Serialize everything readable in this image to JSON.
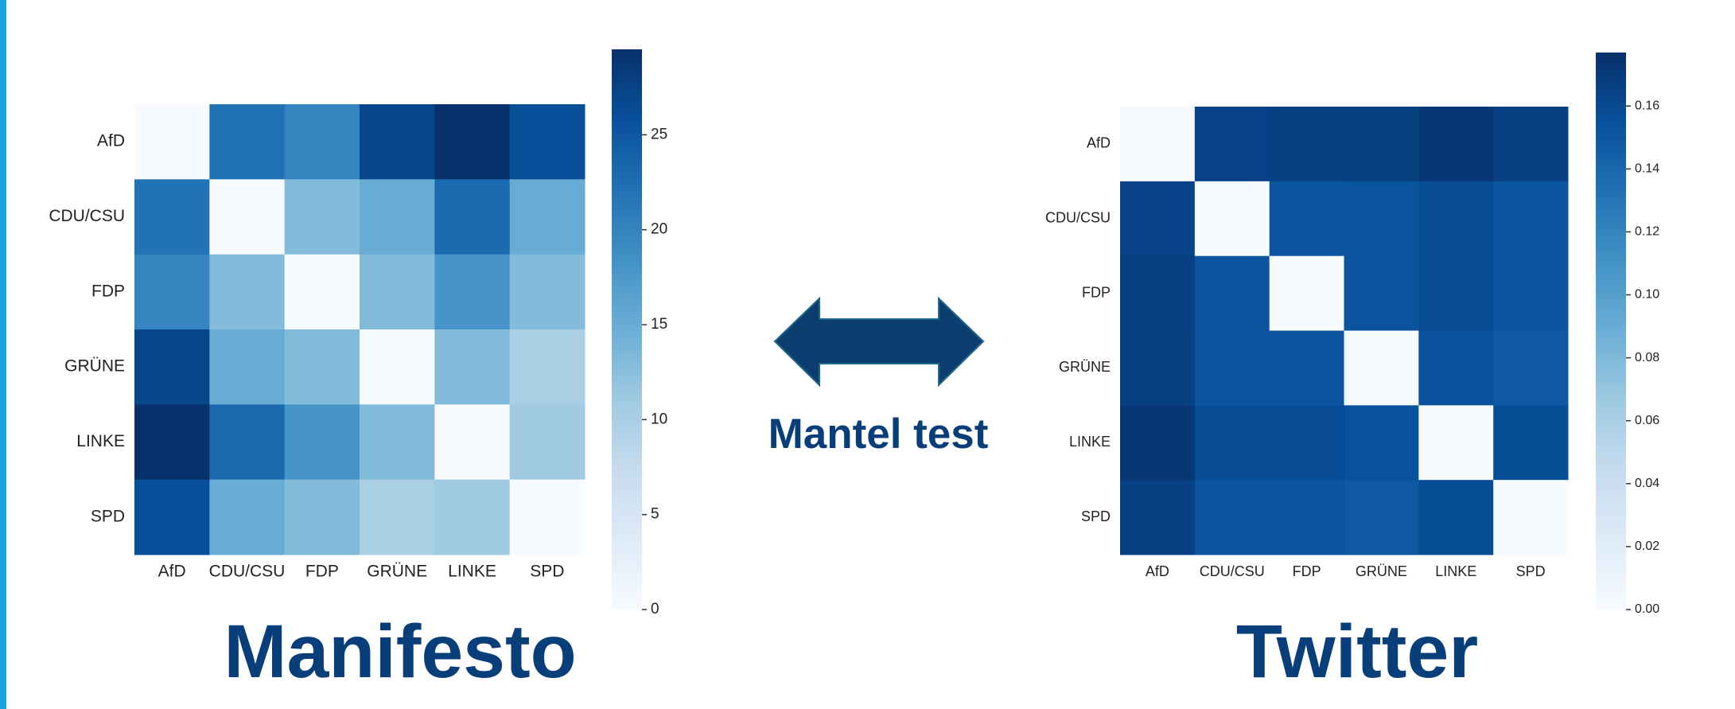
{
  "chart_data": [
    {
      "type": "heatmap",
      "title": "Manifesto",
      "categories": [
        "AfD",
        "CDU/CSU",
        "FDP",
        "GRÜNE",
        "LINKE",
        "SPD"
      ],
      "values": [
        [
          0,
          22,
          20,
          27,
          29.5,
          26
        ],
        [
          22,
          0,
          13,
          15,
          23,
          15
        ],
        [
          20,
          13,
          0,
          13,
          18,
          13
        ],
        [
          27,
          15,
          13,
          0,
          13,
          10
        ],
        [
          29.5,
          23,
          18,
          13,
          0,
          11
        ],
        [
          26,
          15,
          13,
          10,
          11,
          0
        ]
      ],
      "colorscale": [
        "#f7fbff",
        "#deebf7",
        "#c6dbef",
        "#9ecae1",
        "#6baed6",
        "#4292c6",
        "#2171b5",
        "#08519c",
        "#08306b"
      ],
      "zlim": [
        0,
        29.5
      ],
      "zticks": [
        0,
        5,
        10,
        15,
        20,
        25
      ]
    },
    {
      "type": "heatmap",
      "title": "Twitter",
      "categories": [
        "AfD",
        "CDU/CSU",
        "FDP",
        "GRÜNE",
        "LINKE",
        "SPD"
      ],
      "values": [
        [
          0,
          0.165,
          0.166,
          0.167,
          0.172,
          0.166
        ],
        [
          0.165,
          0,
          0.152,
          0.153,
          0.158,
          0.152
        ],
        [
          0.166,
          0.152,
          0,
          0.153,
          0.158,
          0.152
        ],
        [
          0.167,
          0.153,
          0.153,
          0,
          0.155,
          0.149
        ],
        [
          0.172,
          0.158,
          0.158,
          0.155,
          0,
          0.157
        ],
        [
          0.166,
          0.152,
          0.152,
          0.149,
          0.157,
          0
        ]
      ],
      "colorscale": [
        "#f7fbff",
        "#deebf7",
        "#c6dbef",
        "#9ecae1",
        "#6baed6",
        "#4292c6",
        "#2171b5",
        "#08519c",
        "#08306b"
      ],
      "zlim": [
        0,
        0.177
      ],
      "zticks": [
        {
          "value": 0,
          "label": "0.00"
        },
        {
          "value": 0.02,
          "label": "0.02"
        },
        {
          "value": 0.04,
          "label": "0.04"
        },
        {
          "value": 0.06,
          "label": "0.06"
        },
        {
          "value": 0.08,
          "label": "0.08"
        },
        {
          "value": 0.1,
          "label": "0.10"
        },
        {
          "value": 0.12,
          "label": "0.12"
        },
        {
          "value": 0.14,
          "label": "0.14"
        },
        {
          "value": 0.16,
          "label": "0.16"
        }
      ]
    }
  ],
  "annotation": "Mantel test"
}
